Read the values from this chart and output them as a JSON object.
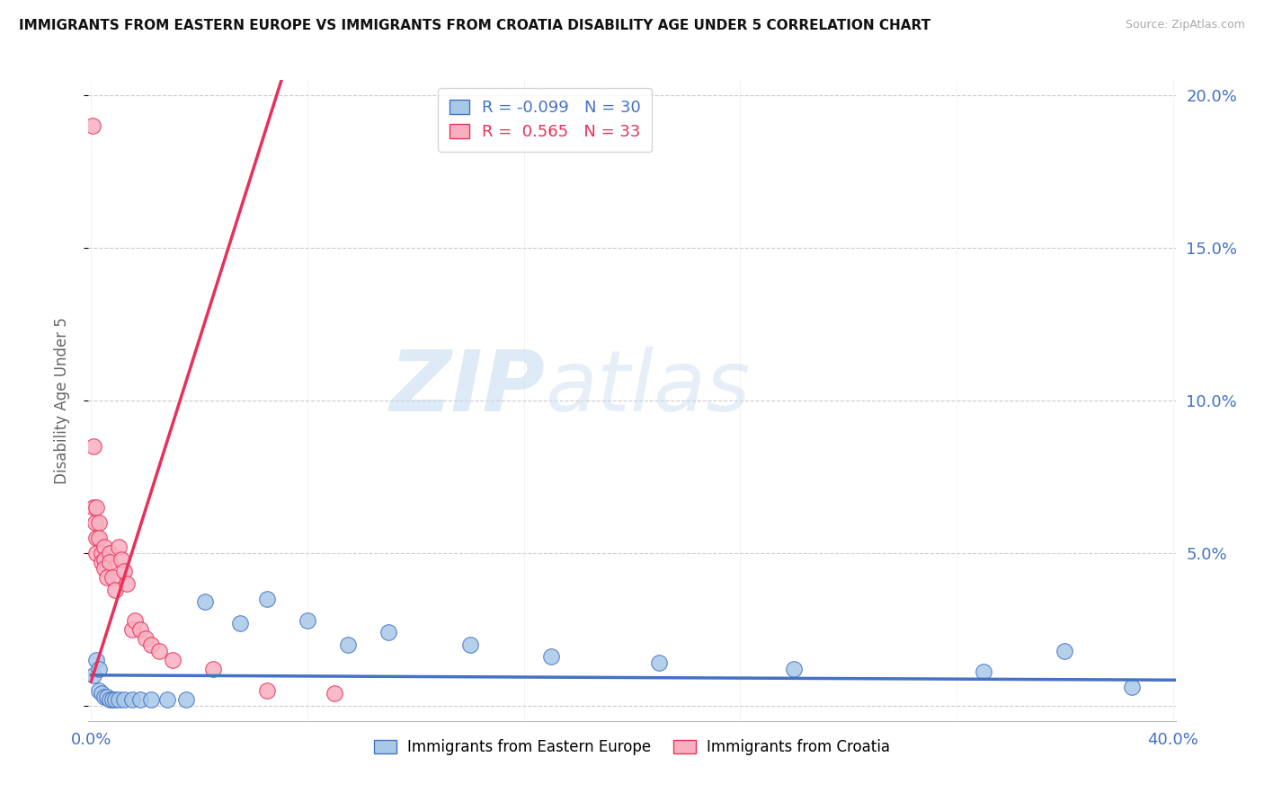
{
  "title": "IMMIGRANTS FROM EASTERN EUROPE VS IMMIGRANTS FROM CROATIA DISABILITY AGE UNDER 5 CORRELATION CHART",
  "source": "Source: ZipAtlas.com",
  "ylabel": "Disability Age Under 5",
  "r_eastern": -0.099,
  "n_eastern": 30,
  "r_croatia": 0.565,
  "n_croatia": 33,
  "xlim": [
    -0.001,
    0.401
  ],
  "ylim": [
    -0.005,
    0.205
  ],
  "yticks": [
    0.0,
    0.05,
    0.1,
    0.15,
    0.2
  ],
  "ytick_right_labels": [
    "",
    "5.0%",
    "10.0%",
    "15.0%",
    "20.0%"
  ],
  "xticks": [
    0.0,
    0.08,
    0.16,
    0.24,
    0.32,
    0.4
  ],
  "xtick_labels": [
    "0.0%",
    "",
    "",
    "",
    "",
    "40.0%"
  ],
  "color_eastern": "#a8c8e8",
  "color_croatia": "#f8b0c0",
  "line_color_eastern": "#4472c4",
  "line_color_croatia": "#e8305a",
  "bg": "#ffffff",
  "eastern_x": [
    0.001,
    0.002,
    0.003,
    0.003,
    0.004,
    0.005,
    0.006,
    0.007,
    0.008,
    0.009,
    0.01,
    0.012,
    0.015,
    0.018,
    0.022,
    0.028,
    0.035,
    0.042,
    0.055,
    0.065,
    0.08,
    0.095,
    0.11,
    0.14,
    0.17,
    0.21,
    0.26,
    0.33,
    0.36,
    0.385
  ],
  "eastern_y": [
    0.01,
    0.015,
    0.005,
    0.012,
    0.004,
    0.003,
    0.003,
    0.002,
    0.002,
    0.002,
    0.002,
    0.002,
    0.002,
    0.002,
    0.002,
    0.002,
    0.002,
    0.034,
    0.027,
    0.035,
    0.028,
    0.02,
    0.024,
    0.02,
    0.016,
    0.014,
    0.012,
    0.011,
    0.018,
    0.006
  ],
  "croatia_x": [
    0.0005,
    0.001,
    0.001,
    0.0015,
    0.002,
    0.002,
    0.002,
    0.003,
    0.003,
    0.004,
    0.004,
    0.005,
    0.005,
    0.005,
    0.006,
    0.007,
    0.007,
    0.008,
    0.009,
    0.01,
    0.011,
    0.012,
    0.013,
    0.015,
    0.016,
    0.018,
    0.02,
    0.022,
    0.025,
    0.03,
    0.045,
    0.065,
    0.09
  ],
  "croatia_y": [
    0.19,
    0.085,
    0.065,
    0.06,
    0.065,
    0.055,
    0.05,
    0.06,
    0.055,
    0.05,
    0.047,
    0.052,
    0.048,
    0.045,
    0.042,
    0.05,
    0.047,
    0.042,
    0.038,
    0.052,
    0.048,
    0.044,
    0.04,
    0.025,
    0.028,
    0.025,
    0.022,
    0.02,
    0.018,
    0.015,
    0.012,
    0.005,
    0.004
  ],
  "slope_croatia": 2.8,
  "intercept_croatia": 0.008,
  "slope_eastern": -0.004,
  "intercept_eastern": 0.01
}
